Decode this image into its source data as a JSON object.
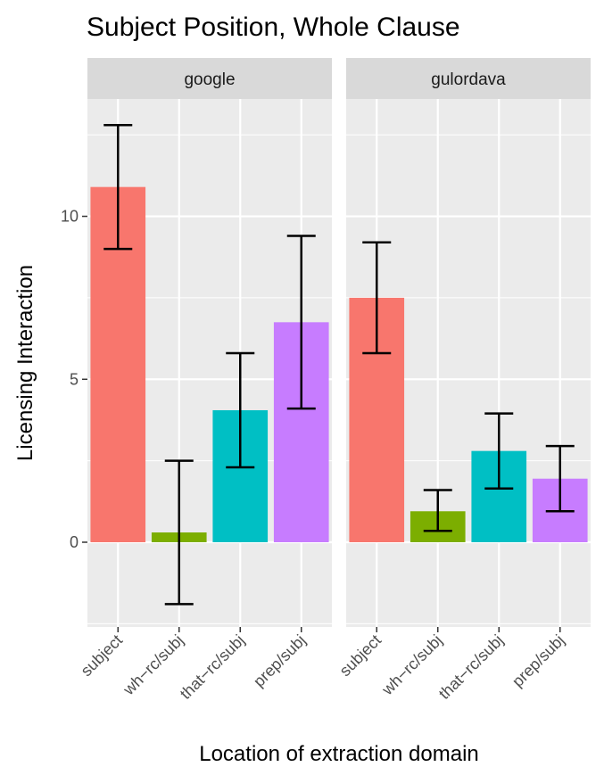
{
  "chart_data": {
    "type": "bar",
    "title": "Subject Position, Whole Clause",
    "xlabel": "Location of extraction domain",
    "ylabel": "Licensing Interaction",
    "categories": [
      "subject",
      "wh−rc/subj",
      "that−rc/subj",
      "prep/subj"
    ],
    "yticks": [
      0,
      5,
      10
    ],
    "ylim": [
      -2.6,
      13.6
    ],
    "grid": true,
    "facets": [
      {
        "name": "google",
        "values": [
          10.9,
          0.3,
          4.05,
          6.75
        ],
        "error_low": [
          9.0,
          -1.9,
          2.3,
          4.1
        ],
        "error_high": [
          12.8,
          2.5,
          5.8,
          9.4
        ]
      },
      {
        "name": "gulordava",
        "values": [
          7.5,
          0.95,
          2.8,
          1.95
        ],
        "error_low": [
          5.8,
          0.35,
          1.65,
          0.95
        ],
        "error_high": [
          9.2,
          1.6,
          3.95,
          2.95
        ]
      }
    ],
    "colors": [
      "#F8766D",
      "#7CAE00",
      "#00BFC4",
      "#C77CFF"
    ]
  }
}
